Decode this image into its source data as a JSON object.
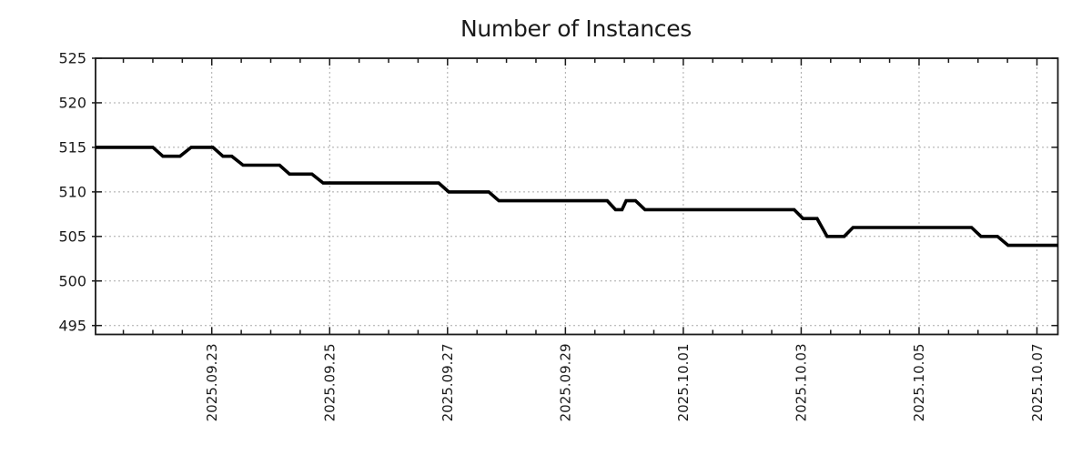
{
  "chart_data": {
    "type": "line",
    "title": "Number of Instances",
    "background": "#ffffff",
    "axis_color": "#1a1a1a",
    "text_color": "#1a1a1a",
    "grid": {
      "show": true,
      "color": "#a8a8a8",
      "dash": "2 3"
    },
    "legend": {
      "show": false
    },
    "x_axis": {
      "unit": "days since 2025-09-21 00:00",
      "range": [
        0.028,
        16.355
      ],
      "minor_tick_step": 0.5,
      "label_rotation": -90,
      "major_ticks": [
        2,
        4,
        6,
        8,
        10,
        12,
        14,
        16
      ],
      "major_tick_labels": [
        "2025.09.23",
        "2025.09.25",
        "2025.09.27",
        "2025.09.29",
        "2025.10.01",
        "2025.10.03",
        "2025.10.05",
        "2025.10.07"
      ]
    },
    "y_axis": {
      "range": [
        494,
        525
      ],
      "ticks": [
        495,
        500,
        505,
        510,
        515,
        520,
        525
      ],
      "tick_labels": [
        "495",
        "500",
        "505",
        "510",
        "515",
        "520",
        "525"
      ]
    },
    "series": [
      {
        "name": "Number of Instances",
        "color": "#000000",
        "line_width": 3.6,
        "points": [
          [
            0.028,
            515
          ],
          [
            1.0,
            515
          ],
          [
            1.17,
            514
          ],
          [
            1.46,
            514
          ],
          [
            1.65,
            515
          ],
          [
            2.02,
            515
          ],
          [
            2.19,
            514
          ],
          [
            2.34,
            514
          ],
          [
            2.53,
            513
          ],
          [
            3.15,
            513
          ],
          [
            3.32,
            512
          ],
          [
            3.7,
            512
          ],
          [
            3.89,
            511
          ],
          [
            5.85,
            511
          ],
          [
            6.02,
            510
          ],
          [
            6.7,
            510
          ],
          [
            6.87,
            509
          ],
          [
            8.71,
            509
          ],
          [
            8.85,
            508
          ],
          [
            8.96,
            508
          ],
          [
            9.03,
            509
          ],
          [
            9.19,
            509
          ],
          [
            9.35,
            508
          ],
          [
            11.88,
            508
          ],
          [
            12.03,
            507
          ],
          [
            12.27,
            507
          ],
          [
            12.44,
            505
          ],
          [
            12.73,
            505
          ],
          [
            12.88,
            506
          ],
          [
            14.89,
            506
          ],
          [
            15.05,
            505
          ],
          [
            15.33,
            505
          ],
          [
            15.51,
            504
          ],
          [
            16.355,
            504
          ]
        ]
      }
    ]
  }
}
